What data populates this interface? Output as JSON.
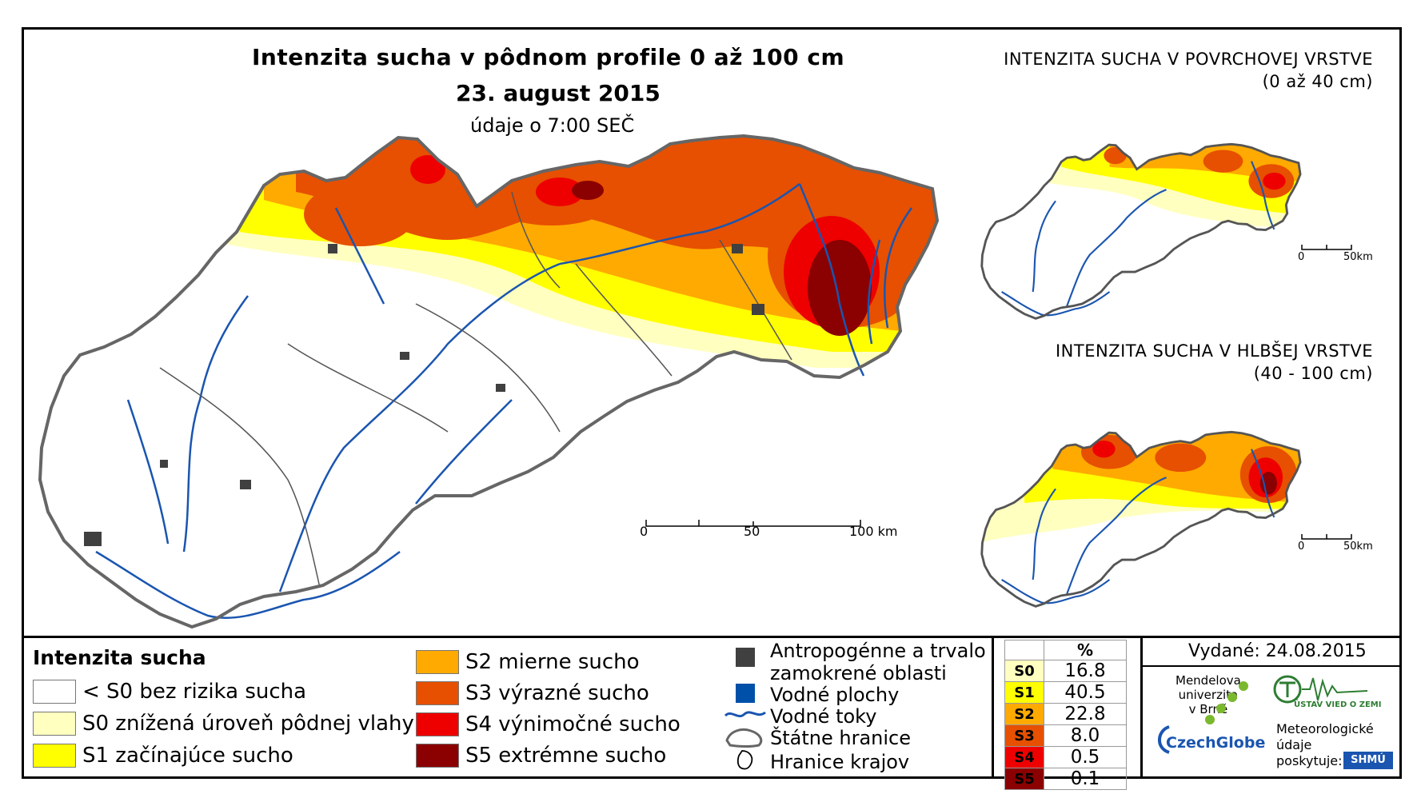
{
  "main_map": {
    "title": "Intenzita sucha v pôdnom profile 0 až 100 cm",
    "date": "23. august 2015",
    "subtitle": "údaje o 7:00 SEČ",
    "scale": {
      "ticks": [
        "0",
        "50",
        "100 km"
      ]
    }
  },
  "inset_surface": {
    "title_line1": "INTENZITA SUCHA V POVRCHOVEJ VRSTVE",
    "title_line2": "(0 až 40 cm)",
    "scale": {
      "ticks": [
        "0",
        "50km"
      ]
    }
  },
  "inset_deep": {
    "title_line1": "INTENZITA SUCHA V HLBŠEJ VRSTVE",
    "title_line2": "(40 - 100 cm)",
    "scale": {
      "ticks": [
        "0",
        "50km"
      ]
    }
  },
  "legend": {
    "title": "Intenzita sucha",
    "classes": [
      {
        "label": "< S0 bez rizika sucha",
        "color": "#ffffff"
      },
      {
        "label": "S0 znížená úroveň pôdnej vlahy",
        "color": "#ffffc0"
      },
      {
        "label": "S1 začínajúce sucho",
        "color": "#ffff00"
      },
      {
        "label": "S2 mierne sucho",
        "color": "#ffaa00"
      },
      {
        "label": "S3 výrazné sucho",
        "color": "#e65000"
      },
      {
        "label": "S4 výnimočné sucho",
        "color": "#ee0000"
      },
      {
        "label": "S5 extrémne sucho",
        "color": "#8b0000"
      }
    ],
    "symbols": [
      {
        "label_line1": "Antropogénne a trvalo",
        "label_line2": "zamokrené oblasti",
        "icon": "dark-square-icon",
        "color": "#404040"
      },
      {
        "label": "Vodné plochy",
        "icon": "blue-square-icon",
        "color": "#0050aa"
      },
      {
        "label": "Vodné toky",
        "icon": "river-line-icon",
        "color": "#1a55b0"
      },
      {
        "label": "Štátne hranice",
        "icon": "state-border-icon"
      },
      {
        "label": "Hranice krajov",
        "icon": "region-border-icon"
      }
    ]
  },
  "stats": {
    "header": "%",
    "rows": [
      {
        "class": "S0",
        "value": "16.8",
        "color": "#ffffc0"
      },
      {
        "class": "S1",
        "value": "40.5",
        "color": "#ffff00"
      },
      {
        "class": "S2",
        "value": "22.8",
        "color": "#ffaa00"
      },
      {
        "class": "S3",
        "value": "8.0",
        "color": "#e65000"
      },
      {
        "class": "S4",
        "value": "0.5",
        "color": "#ee0000"
      },
      {
        "class": "S5",
        "value": "0.1",
        "color": "#8b0000"
      }
    ]
  },
  "issued": "Vydané: 24.08.2015",
  "logos": {
    "mendel_line1": "Mendelova",
    "mendel_line2": "univerzita",
    "mendel_line3": "v Brně",
    "czechglobe": "CzechGlobe",
    "ustav": "ÚSTAV VIED O ZEMI",
    "meteo_line1": "Meteorologické",
    "meteo_line2": "údaje",
    "meteo_line3": "poskytuje:",
    "shmu": "SHMÚ"
  }
}
